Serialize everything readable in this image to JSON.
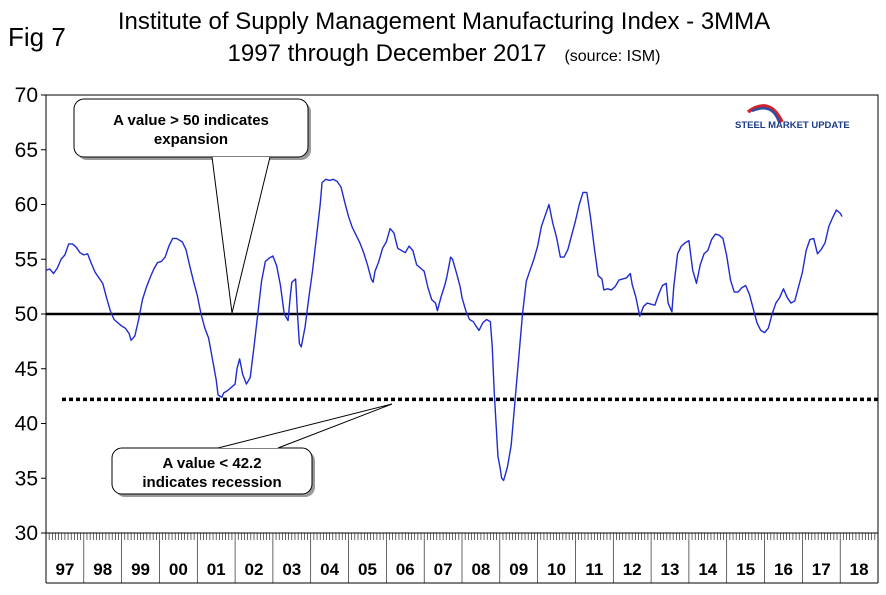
{
  "figure": {
    "label": "Fig 7",
    "title_line1": "Institute of Supply Management Manufacturing Index - 3MMA",
    "title_line2": "1997 through December 2017",
    "source": "(source: ISM)"
  },
  "logo": {
    "text": "STEEL MARKET UPDATE"
  },
  "chart_data": {
    "type": "line",
    "title": "Institute of Supply Management Manufacturing Index - 3MMA",
    "subtitle": "1997 through December 2017",
    "ylim": [
      30,
      70
    ],
    "y_ticks": [
      30,
      35,
      40,
      45,
      50,
      55,
      60,
      65,
      70
    ],
    "x_range": [
      1997,
      2019
    ],
    "x_tick_labels": [
      "97",
      "98",
      "99",
      "00",
      "01",
      "02",
      "03",
      "04",
      "05",
      "06",
      "07",
      "08",
      "09",
      "10",
      "11",
      "12",
      "13",
      "14",
      "15",
      "16",
      "17",
      "18"
    ],
    "reference_lines": [
      {
        "name": "expansion threshold",
        "value": 50,
        "style": "solid"
      },
      {
        "name": "recession threshold",
        "value": 42.2,
        "style": "dotted"
      }
    ],
    "annotations": [
      {
        "line1": "A value > 50 indicates",
        "line2": "expansion",
        "points_to": {
          "x": 2001.3,
          "y": 50
        }
      },
      {
        "line1": "A value < 42.2",
        "line2": "indicates recession",
        "points_to": {
          "x": 2006.0,
          "y": 41.8
        }
      }
    ],
    "series": [
      {
        "color": "#1f2bd0",
        "points": [
          [
            1997.0,
            54.0
          ],
          [
            1997.1,
            54.1
          ],
          [
            1997.2,
            53.7
          ],
          [
            1997.3,
            54.2
          ],
          [
            1997.4,
            55.0
          ],
          [
            1997.5,
            55.4
          ],
          [
            1997.6,
            56.4
          ],
          [
            1997.7,
            56.4
          ],
          [
            1997.8,
            56.1
          ],
          [
            1997.9,
            55.6
          ],
          [
            1998.0,
            55.4
          ],
          [
            1998.1,
            55.5
          ],
          [
            1998.2,
            54.6
          ],
          [
            1998.3,
            53.8
          ],
          [
            1998.4,
            53.3
          ],
          [
            1998.5,
            52.8
          ],
          [
            1998.6,
            51.5
          ],
          [
            1998.7,
            50.3
          ],
          [
            1998.8,
            49.5
          ],
          [
            1998.9,
            49.2
          ],
          [
            1999.0,
            48.9
          ],
          [
            1999.1,
            48.7
          ],
          [
            1999.2,
            48.2
          ],
          [
            1999.25,
            47.6
          ],
          [
            1999.35,
            48.0
          ],
          [
            1999.45,
            49.5
          ],
          [
            1999.55,
            51.3
          ],
          [
            1999.65,
            52.4
          ],
          [
            1999.75,
            53.3
          ],
          [
            1999.85,
            54.1
          ],
          [
            1999.95,
            54.7
          ],
          [
            2000.05,
            54.8
          ],
          [
            2000.15,
            55.2
          ],
          [
            2000.25,
            56.2
          ],
          [
            2000.35,
            56.9
          ],
          [
            2000.45,
            56.9
          ],
          [
            2000.6,
            56.6
          ],
          [
            2000.7,
            55.9
          ],
          [
            2000.8,
            54.4
          ],
          [
            2000.9,
            53.0
          ],
          [
            2001.0,
            51.7
          ],
          [
            2001.1,
            50.0
          ],
          [
            2001.2,
            48.7
          ],
          [
            2001.3,
            47.8
          ],
          [
            2001.4,
            45.9
          ],
          [
            2001.5,
            44.0
          ],
          [
            2001.55,
            42.6
          ],
          [
            2001.65,
            42.4
          ],
          [
            2001.7,
            42.8
          ],
          [
            2001.8,
            43.0
          ],
          [
            2001.9,
            43.3
          ],
          [
            2002.0,
            43.6
          ],
          [
            2002.05,
            45.0
          ],
          [
            2002.12,
            45.9
          ],
          [
            2002.2,
            44.5
          ],
          [
            2002.3,
            43.6
          ],
          [
            2002.4,
            44.2
          ],
          [
            2002.5,
            47.0
          ],
          [
            2002.6,
            50.0
          ],
          [
            2002.7,
            53.0
          ],
          [
            2002.8,
            54.8
          ],
          [
            2002.9,
            55.1
          ],
          [
            2003.0,
            55.3
          ],
          [
            2003.1,
            54.4
          ],
          [
            2003.2,
            52.6
          ],
          [
            2003.3,
            50.0
          ],
          [
            2003.4,
            49.4
          ],
          [
            2003.45,
            51.3
          ],
          [
            2003.5,
            52.9
          ],
          [
            2003.6,
            53.2
          ],
          [
            2003.65,
            50.0
          ],
          [
            2003.7,
            47.3
          ],
          [
            2003.75,
            47.0
          ],
          [
            2003.85,
            48.8
          ],
          [
            2003.95,
            51.5
          ],
          [
            2004.05,
            54.0
          ],
          [
            2004.15,
            57.0
          ],
          [
            2004.25,
            60.0
          ],
          [
            2004.3,
            62.0
          ],
          [
            2004.4,
            62.3
          ],
          [
            2004.5,
            62.2
          ],
          [
            2004.6,
            62.3
          ],
          [
            2004.7,
            62.1
          ],
          [
            2004.8,
            61.6
          ],
          [
            2004.9,
            60.2
          ],
          [
            2005.0,
            58.9
          ],
          [
            2005.1,
            57.9
          ],
          [
            2005.2,
            57.2
          ],
          [
            2005.3,
            56.5
          ],
          [
            2005.4,
            55.6
          ],
          [
            2005.5,
            54.5
          ],
          [
            2005.6,
            53.2
          ],
          [
            2005.65,
            52.9
          ],
          [
            2005.7,
            53.9
          ],
          [
            2005.8,
            54.8
          ],
          [
            2005.9,
            56.0
          ],
          [
            2006.0,
            56.6
          ],
          [
            2006.1,
            57.8
          ],
          [
            2006.2,
            57.4
          ],
          [
            2006.3,
            56.0
          ],
          [
            2006.4,
            55.8
          ],
          [
            2006.5,
            55.6
          ],
          [
            2006.6,
            56.2
          ],
          [
            2006.7,
            55.8
          ],
          [
            2006.8,
            54.5
          ],
          [
            2006.9,
            54.2
          ],
          [
            2007.0,
            53.9
          ],
          [
            2007.1,
            52.4
          ],
          [
            2007.2,
            51.3
          ],
          [
            2007.3,
            51.0
          ],
          [
            2007.35,
            50.3
          ],
          [
            2007.45,
            51.6
          ],
          [
            2007.55,
            52.7
          ],
          [
            2007.6,
            53.4
          ],
          [
            2007.7,
            55.2
          ],
          [
            2007.75,
            55.0
          ],
          [
            2007.85,
            53.8
          ],
          [
            2007.95,
            52.5
          ],
          [
            2008.0,
            51.5
          ],
          [
            2008.1,
            50.3
          ],
          [
            2008.2,
            49.5
          ],
          [
            2008.3,
            49.3
          ],
          [
            2008.35,
            49.0
          ],
          [
            2008.45,
            48.5
          ],
          [
            2008.55,
            49.2
          ],
          [
            2008.65,
            49.5
          ],
          [
            2008.75,
            49.3
          ],
          [
            2008.8,
            47.0
          ],
          [
            2008.85,
            43.0
          ],
          [
            2008.9,
            40.0
          ],
          [
            2008.95,
            37.0
          ],
          [
            2009.0,
            36.1
          ],
          [
            2009.05,
            35.0
          ],
          [
            2009.1,
            34.8
          ],
          [
            2009.2,
            36.0
          ],
          [
            2009.3,
            38.0
          ],
          [
            2009.4,
            42.0
          ],
          [
            2009.5,
            46.0
          ],
          [
            2009.6,
            50.0
          ],
          [
            2009.7,
            53.0
          ],
          [
            2009.8,
            54.0
          ],
          [
            2009.9,
            55.0
          ],
          [
            2010.0,
            56.2
          ],
          [
            2010.1,
            58.0
          ],
          [
            2010.2,
            59.0
          ],
          [
            2010.3,
            60.0
          ],
          [
            2010.4,
            58.3
          ],
          [
            2010.5,
            57.0
          ],
          [
            2010.6,
            55.2
          ],
          [
            2010.7,
            55.2
          ],
          [
            2010.8,
            55.9
          ],
          [
            2010.9,
            57.2
          ],
          [
            2011.0,
            58.5
          ],
          [
            2011.1,
            60.0
          ],
          [
            2011.2,
            61.1
          ],
          [
            2011.3,
            61.1
          ],
          [
            2011.4,
            58.8
          ],
          [
            2011.5,
            56.0
          ],
          [
            2011.6,
            53.5
          ],
          [
            2011.7,
            53.2
          ],
          [
            2011.75,
            52.2
          ],
          [
            2011.85,
            52.3
          ],
          [
            2011.95,
            52.2
          ],
          [
            2012.05,
            52.5
          ],
          [
            2012.15,
            53.1
          ],
          [
            2012.25,
            53.2
          ],
          [
            2012.35,
            53.3
          ],
          [
            2012.45,
            53.7
          ],
          [
            2012.5,
            52.7
          ],
          [
            2012.6,
            51.5
          ],
          [
            2012.7,
            49.8
          ],
          [
            2012.8,
            50.7
          ],
          [
            2012.9,
            51.0
          ],
          [
            2013.0,
            50.9
          ],
          [
            2013.1,
            50.8
          ],
          [
            2013.2,
            51.8
          ],
          [
            2013.3,
            52.6
          ],
          [
            2013.4,
            52.8
          ],
          [
            2013.45,
            51.0
          ],
          [
            2013.55,
            50.2
          ],
          [
            2013.6,
            52.5
          ],
          [
            2013.7,
            55.5
          ],
          [
            2013.8,
            56.2
          ],
          [
            2013.9,
            56.5
          ],
          [
            2014.0,
            56.7
          ],
          [
            2014.1,
            54.0
          ],
          [
            2014.2,
            52.8
          ],
          [
            2014.3,
            54.5
          ],
          [
            2014.4,
            55.5
          ],
          [
            2014.5,
            55.8
          ],
          [
            2014.6,
            56.8
          ],
          [
            2014.7,
            57.3
          ],
          [
            2014.8,
            57.2
          ],
          [
            2014.9,
            56.9
          ],
          [
            2015.0,
            55.3
          ],
          [
            2015.1,
            53.1
          ],
          [
            2015.2,
            52.0
          ],
          [
            2015.3,
            52.0
          ],
          [
            2015.4,
            52.4
          ],
          [
            2015.5,
            52.6
          ],
          [
            2015.6,
            51.8
          ],
          [
            2015.7,
            50.5
          ],
          [
            2015.8,
            49.2
          ],
          [
            2015.9,
            48.5
          ],
          [
            2016.0,
            48.3
          ],
          [
            2016.1,
            48.7
          ],
          [
            2016.2,
            50.0
          ],
          [
            2016.3,
            51.0
          ],
          [
            2016.4,
            51.5
          ],
          [
            2016.5,
            52.3
          ],
          [
            2016.6,
            51.5
          ],
          [
            2016.7,
            51.0
          ],
          [
            2016.8,
            51.2
          ],
          [
            2016.9,
            52.5
          ],
          [
            2017.0,
            53.8
          ],
          [
            2017.1,
            55.8
          ],
          [
            2017.2,
            56.8
          ],
          [
            2017.3,
            56.9
          ],
          [
            2017.4,
            55.5
          ],
          [
            2017.5,
            55.9
          ],
          [
            2017.6,
            56.5
          ],
          [
            2017.7,
            58.0
          ],
          [
            2017.8,
            58.8
          ],
          [
            2017.9,
            59.5
          ],
          [
            2018.0,
            59.2
          ],
          [
            2018.05,
            58.9
          ]
        ]
      }
    ]
  }
}
